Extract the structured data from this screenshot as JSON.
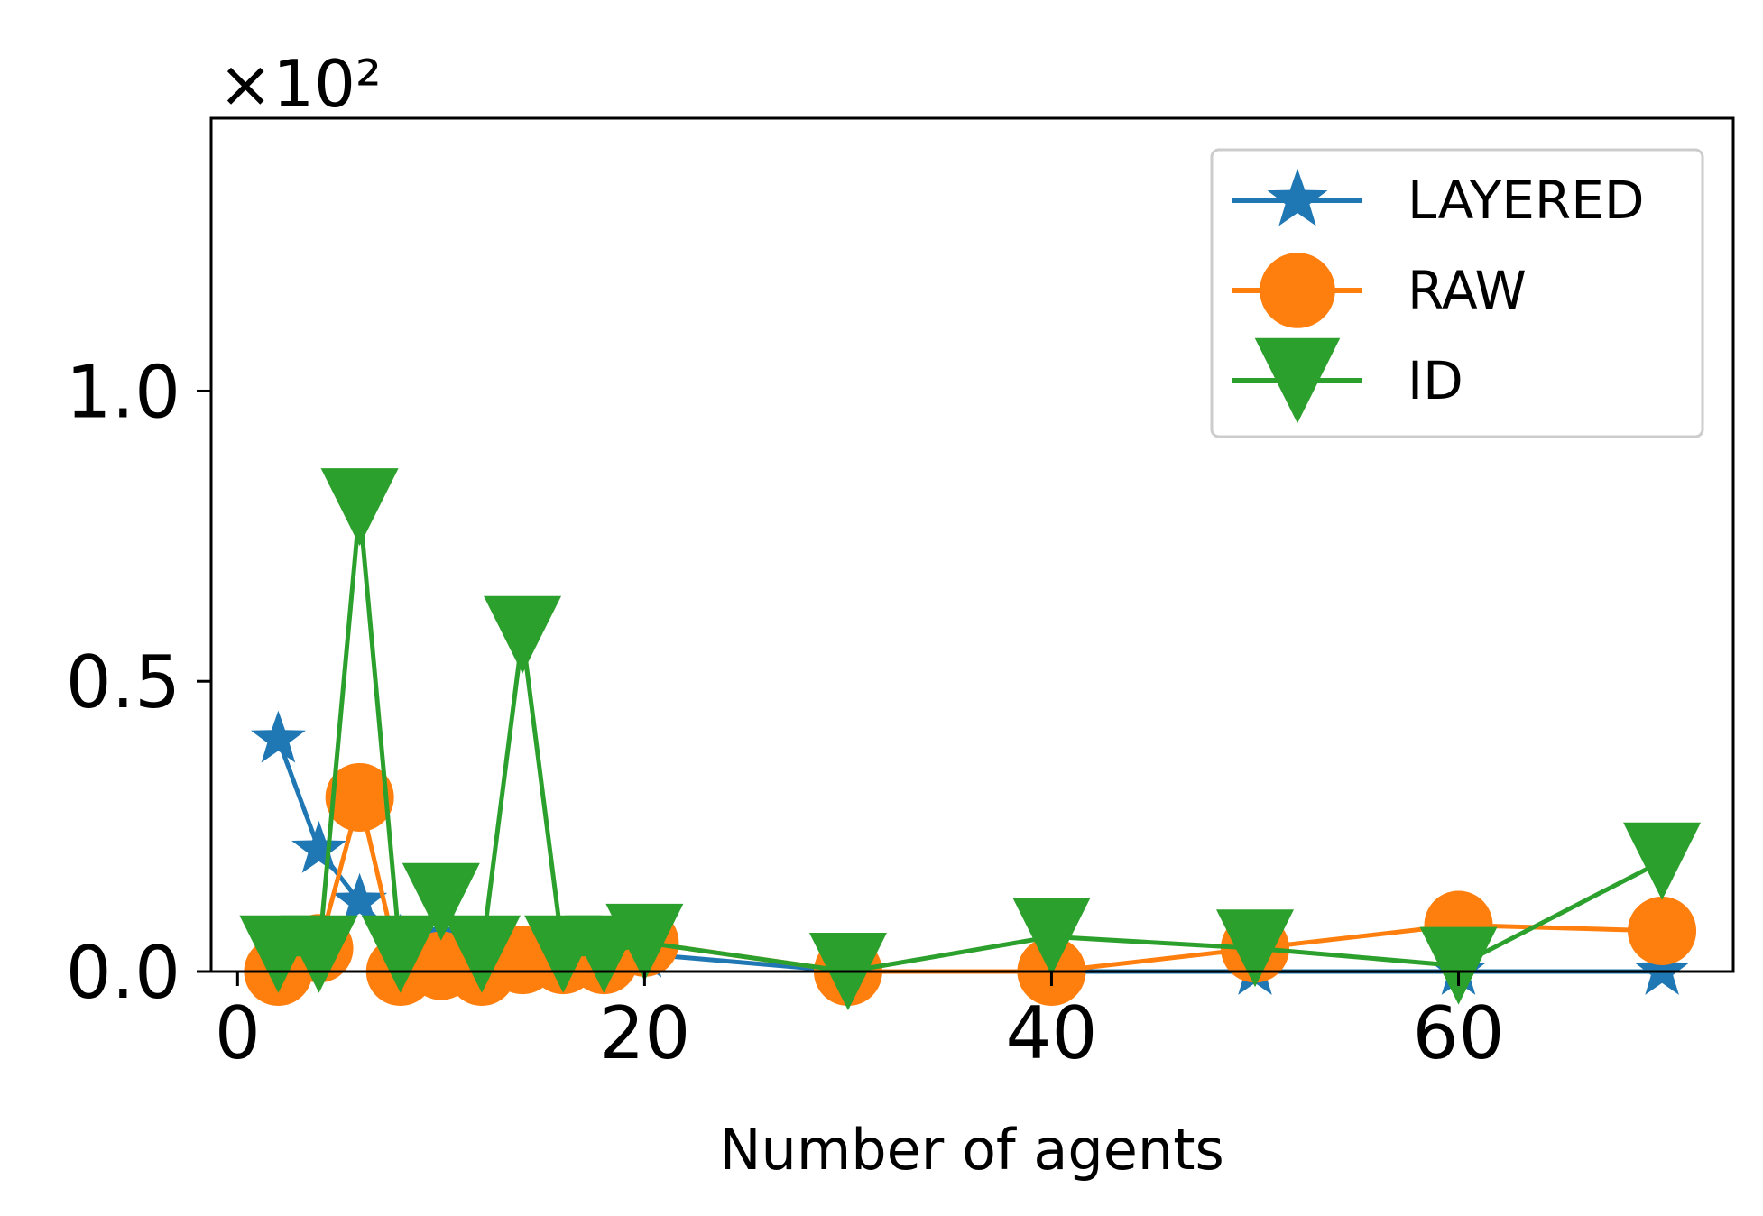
{
  "chart_data": {
    "type": "line",
    "title": "",
    "xlabel": "Number of agents",
    "ylabel": "",
    "y_scale_label": "×10²",
    "xlim": [
      -1.3,
      73.5
    ],
    "ylim": [
      0,
      1.47
    ],
    "x_ticks": [
      0,
      20,
      40,
      60
    ],
    "x_tick_labels": [
      "0",
      "20",
      "40",
      "60"
    ],
    "y_ticks": [
      0.0,
      0.5,
      1.0
    ],
    "y_tick_labels": [
      "0.0",
      "0.5",
      "1.0"
    ],
    "grid": false,
    "legend_position": "top-right",
    "series": [
      {
        "name": "LAYERED",
        "color": "#1f77b4",
        "marker": "star",
        "x": [
          2,
          4,
          6,
          8,
          10,
          12,
          14,
          16,
          18,
          20,
          30,
          40,
          50,
          60,
          70
        ],
        "y": [
          0.4,
          0.21,
          0.12,
          0.05,
          0.06,
          0.03,
          0.02,
          0.02,
          0.02,
          0.03,
          0.0,
          0.0,
          0.0,
          0.0,
          0.0
        ]
      },
      {
        "name": "RAW",
        "color": "#ff7f0e",
        "marker": "circle",
        "x": [
          2,
          4,
          6,
          8,
          10,
          12,
          14,
          16,
          18,
          20,
          30,
          40,
          50,
          60,
          70
        ],
        "y": [
          0.0,
          0.04,
          0.3,
          0.0,
          0.01,
          0.0,
          0.02,
          0.02,
          0.02,
          0.05,
          0.0,
          0.0,
          0.04,
          0.08,
          0.07
        ]
      },
      {
        "name": "ID",
        "color": "#2ca02c",
        "marker": "triangle-down",
        "x": [
          2,
          4,
          6,
          8,
          10,
          12,
          14,
          16,
          18,
          20,
          30,
          40,
          50,
          60,
          70
        ],
        "y": [
          0.03,
          0.03,
          0.8,
          0.03,
          0.12,
          0.03,
          0.58,
          0.03,
          0.03,
          0.05,
          0.0,
          0.06,
          0.04,
          0.01,
          0.19
        ]
      }
    ]
  }
}
